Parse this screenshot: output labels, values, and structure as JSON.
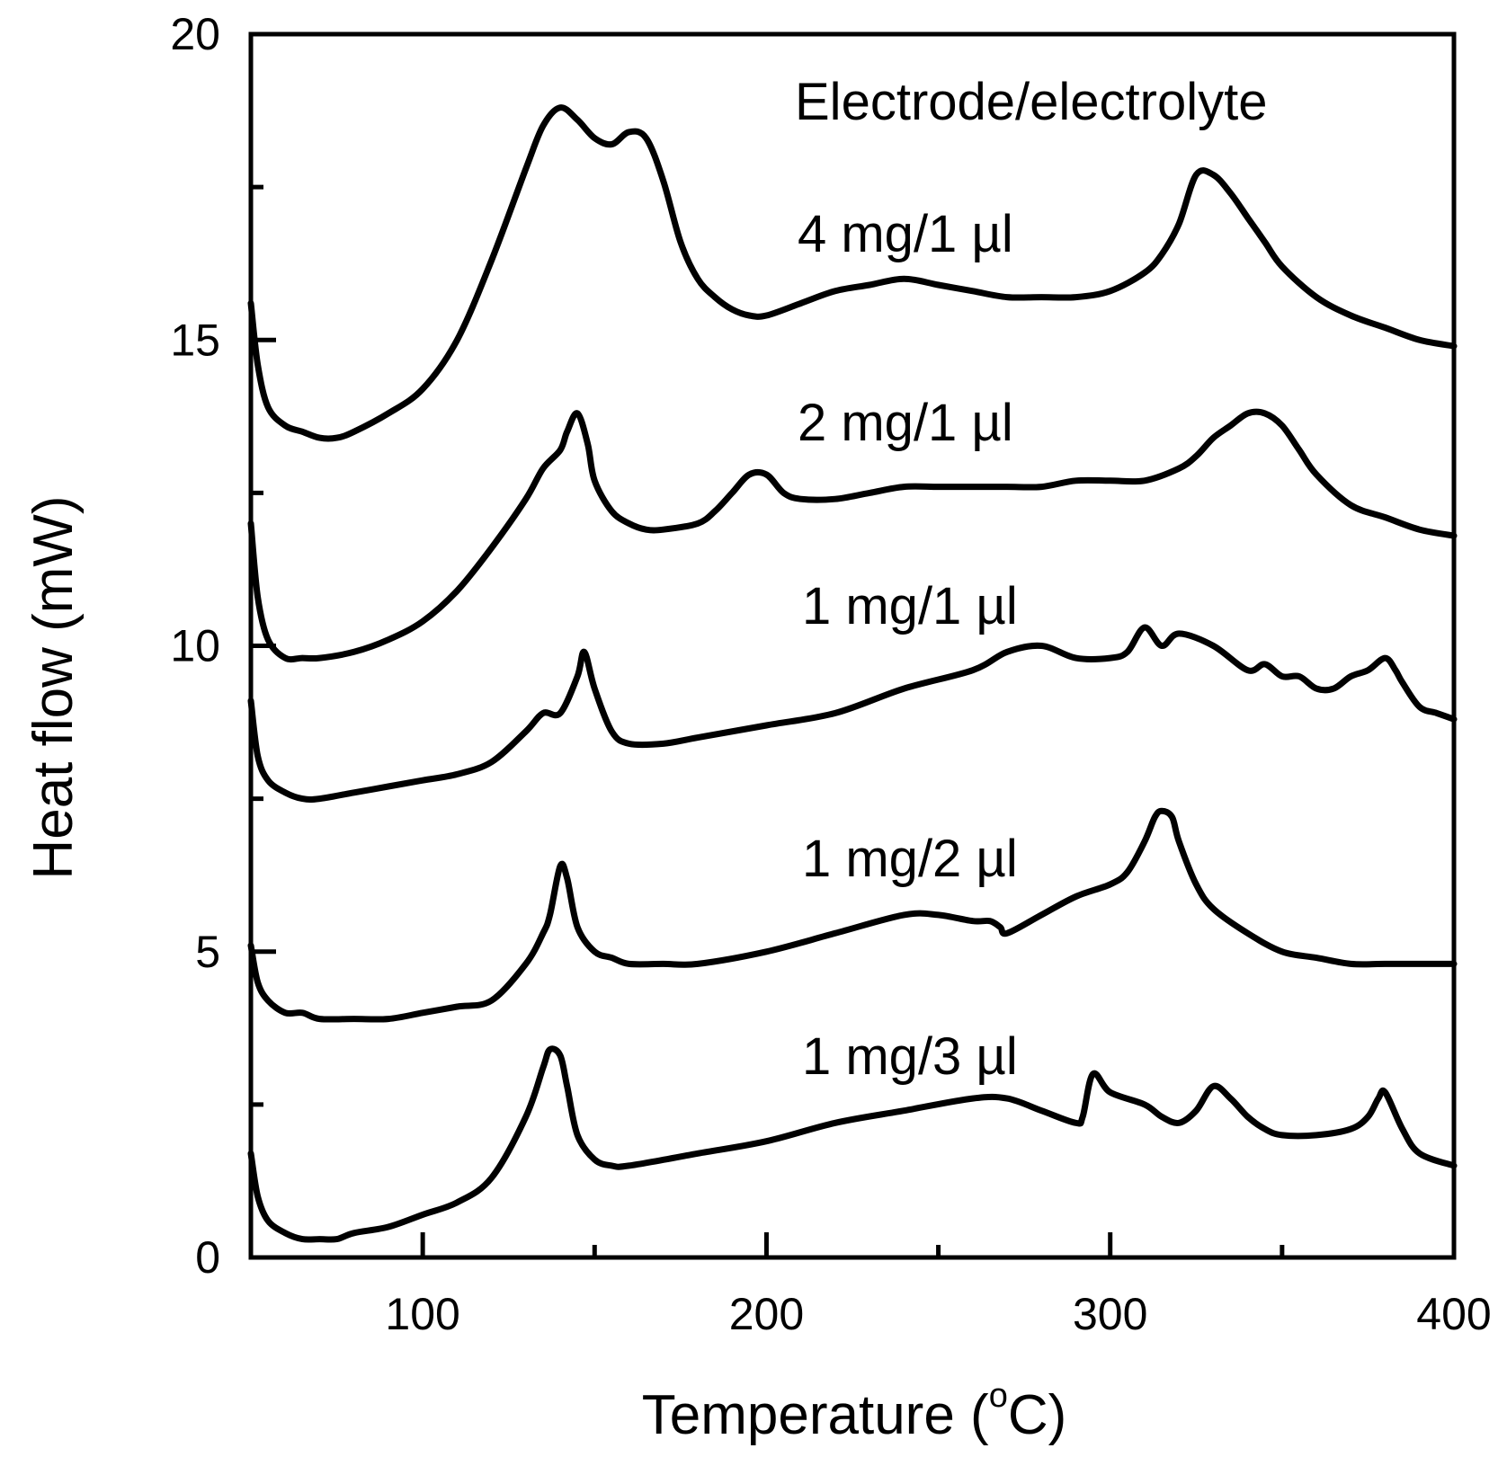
{
  "chart_data": {
    "type": "line",
    "title": "",
    "xlabel": "Temperature (°C)",
    "xlabel_parts": {
      "main": "Temperature (",
      "superscript": "o",
      "rest": "C)"
    },
    "ylabel": "Heat flow (mW)",
    "xlim": [
      50,
      400
    ],
    "ylim": [
      0,
      20
    ],
    "x_ticks": [
      100,
      200,
      300,
      400
    ],
    "x_ticks_minor": [
      150,
      250,
      350
    ],
    "y_ticks": [
      0,
      5,
      10,
      15,
      20
    ],
    "y_ticks_minor": [
      2.5,
      7.5,
      12.5,
      17.5
    ],
    "grid": false,
    "legend_title": "Electrode/electrolyte",
    "series": [
      {
        "name": "4 mg/1 µl",
        "x": [
          50,
          52,
          55,
          60,
          65,
          70,
          75,
          80,
          90,
          100,
          110,
          120,
          130,
          135,
          140,
          145,
          150,
          155,
          160,
          165,
          170,
          175,
          180,
          185,
          190,
          195,
          200,
          210,
          220,
          230,
          240,
          250,
          260,
          270,
          280,
          290,
          300,
          310,
          315,
          320,
          325,
          330,
          335,
          340,
          345,
          350,
          360,
          370,
          380,
          390,
          400
        ],
        "y": [
          15.6,
          14.6,
          13.9,
          13.6,
          13.5,
          13.4,
          13.4,
          13.5,
          13.8,
          14.2,
          15.0,
          16.3,
          17.8,
          18.5,
          18.8,
          18.6,
          18.3,
          18.2,
          18.4,
          18.3,
          17.6,
          16.6,
          16.0,
          15.7,
          15.5,
          15.4,
          15.4,
          15.6,
          15.8,
          15.9,
          16.0,
          15.9,
          15.8,
          15.7,
          15.7,
          15.7,
          15.8,
          16.1,
          16.4,
          16.9,
          17.7,
          17.7,
          17.4,
          17.0,
          16.6,
          16.2,
          15.7,
          15.4,
          15.2,
          15.0,
          14.9
        ]
      },
      {
        "name": "2 mg/1 µl",
        "x": [
          50,
          52,
          55,
          60,
          65,
          70,
          80,
          90,
          100,
          110,
          120,
          130,
          135,
          140,
          142,
          145,
          148,
          150,
          155,
          160,
          165,
          170,
          180,
          185,
          190,
          195,
          200,
          205,
          210,
          220,
          230,
          240,
          250,
          260,
          270,
          280,
          290,
          300,
          310,
          320,
          325,
          330,
          335,
          340,
          345,
          350,
          355,
          360,
          370,
          380,
          390,
          400
        ],
        "y": [
          12.0,
          10.8,
          10.1,
          9.8,
          9.8,
          9.8,
          9.9,
          10.1,
          10.4,
          10.9,
          11.6,
          12.4,
          12.9,
          13.2,
          13.5,
          13.8,
          13.3,
          12.7,
          12.2,
          12.0,
          11.9,
          11.9,
          12.0,
          12.2,
          12.5,
          12.8,
          12.8,
          12.5,
          12.4,
          12.4,
          12.5,
          12.6,
          12.6,
          12.6,
          12.6,
          12.6,
          12.7,
          12.7,
          12.7,
          12.9,
          13.1,
          13.4,
          13.6,
          13.8,
          13.8,
          13.6,
          13.2,
          12.8,
          12.3,
          12.1,
          11.9,
          11.8
        ]
      },
      {
        "name": "1 mg/1 µl",
        "x": [
          50,
          52,
          55,
          60,
          65,
          70,
          80,
          90,
          100,
          110,
          120,
          130,
          135,
          140,
          145,
          147,
          150,
          155,
          160,
          170,
          180,
          200,
          220,
          240,
          260,
          270,
          280,
          290,
          300,
          305,
          310,
          315,
          320,
          330,
          340,
          345,
          350,
          355,
          360,
          365,
          370,
          375,
          380,
          383,
          385,
          390,
          395,
          400
        ],
        "y": [
          9.1,
          8.2,
          7.8,
          7.6,
          7.5,
          7.5,
          7.6,
          7.7,
          7.8,
          7.9,
          8.1,
          8.6,
          8.9,
          8.9,
          9.5,
          9.9,
          9.3,
          8.6,
          8.4,
          8.4,
          8.5,
          8.7,
          8.9,
          9.3,
          9.6,
          9.9,
          10.0,
          9.8,
          9.8,
          9.9,
          10.3,
          10.0,
          10.2,
          10.0,
          9.6,
          9.7,
          9.5,
          9.5,
          9.3,
          9.3,
          9.5,
          9.6,
          9.8,
          9.6,
          9.4,
          9.0,
          8.9,
          8.8
        ]
      },
      {
        "name": "1 mg/2 µl",
        "x": [
          50,
          52,
          55,
          60,
          65,
          70,
          80,
          90,
          100,
          110,
          120,
          130,
          135,
          137,
          140,
          142,
          145,
          150,
          155,
          160,
          170,
          180,
          200,
          220,
          240,
          250,
          260,
          265,
          268,
          270,
          280,
          290,
          300,
          305,
          310,
          313,
          315,
          318,
          320,
          325,
          330,
          340,
          350,
          360,
          370,
          380,
          390,
          400
        ],
        "y": [
          5.1,
          4.5,
          4.2,
          4.0,
          4.0,
          3.9,
          3.9,
          3.9,
          4.0,
          4.1,
          4.2,
          4.8,
          5.3,
          5.6,
          6.4,
          6.2,
          5.4,
          5.0,
          4.9,
          4.8,
          4.8,
          4.8,
          5.0,
          5.3,
          5.6,
          5.6,
          5.5,
          5.5,
          5.4,
          5.3,
          5.6,
          5.9,
          6.1,
          6.3,
          6.8,
          7.2,
          7.3,
          7.2,
          6.8,
          6.1,
          5.7,
          5.3,
          5.0,
          4.9,
          4.8,
          4.8,
          4.8,
          4.8
        ]
      },
      {
        "name": "1 mg/3 µl",
        "x": [
          50,
          52,
          55,
          60,
          65,
          70,
          75,
          80,
          90,
          100,
          110,
          120,
          130,
          135,
          137,
          140,
          142,
          145,
          150,
          155,
          160,
          180,
          200,
          220,
          240,
          260,
          270,
          280,
          290,
          292,
          295,
          300,
          310,
          315,
          320,
          325,
          330,
          335,
          340,
          345,
          350,
          360,
          370,
          375,
          378,
          380,
          385,
          390,
          400
        ],
        "y": [
          1.7,
          1.0,
          0.6,
          0.4,
          0.3,
          0.3,
          0.3,
          0.4,
          0.5,
          0.7,
          0.9,
          1.3,
          2.3,
          3.1,
          3.4,
          3.3,
          2.8,
          2.0,
          1.6,
          1.5,
          1.5,
          1.7,
          1.9,
          2.2,
          2.4,
          2.6,
          2.6,
          2.4,
          2.2,
          2.3,
          3.0,
          2.7,
          2.5,
          2.3,
          2.2,
          2.4,
          2.8,
          2.6,
          2.3,
          2.1,
          2.0,
          2.0,
          2.1,
          2.3,
          2.6,
          2.7,
          2.1,
          1.7,
          1.5
        ]
      }
    ]
  }
}
